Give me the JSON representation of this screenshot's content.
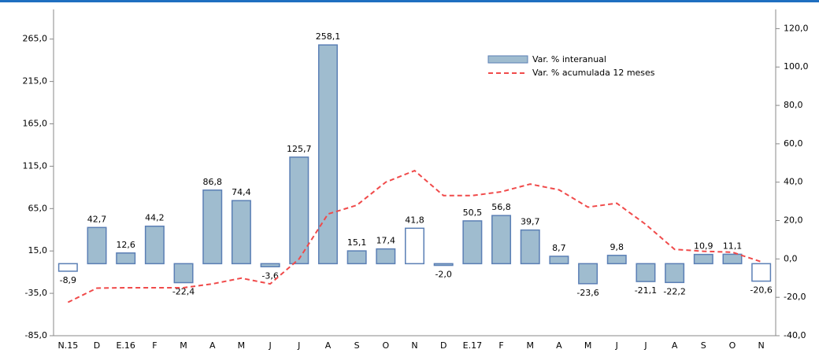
{
  "chart_data": {
    "type": "bar",
    "categories": [
      "N.15",
      "D",
      "E.16",
      "F",
      "M",
      "A",
      "M",
      "J",
      "J",
      "A",
      "S",
      "O",
      "N",
      "D",
      "E.17",
      "F",
      "M",
      "A",
      "M",
      "J",
      "J",
      "A",
      "S",
      "O",
      "N"
    ],
    "series": [
      {
        "name": "Var. % interanual",
        "color": "#9fbccf",
        "edge": "#5b7fb5",
        "colors": [
          "#ffffff",
          "#9fbccf",
          "#9fbccf",
          "#9fbccf",
          "#9fbccf",
          "#9fbccf",
          "#9fbccf",
          "#9fbccf",
          "#9fbccf",
          "#9fbccf",
          "#9fbccf",
          "#9fbccf",
          "#ffffff",
          "#9fbccf",
          "#9fbccf",
          "#9fbccf",
          "#9fbccf",
          "#9fbccf",
          "#9fbccf",
          "#9fbccf",
          "#9fbccf",
          "#9fbccf",
          "#9fbccf",
          "#9fbccf",
          "#ffffff"
        ],
        "values": [
          -8.9,
          42.7,
          12.6,
          44.2,
          -22.4,
          86.8,
          74.4,
          -3.6,
          125.7,
          258.1,
          15.1,
          17.4,
          41.8,
          -2.0,
          50.5,
          56.8,
          39.7,
          8.7,
          -23.6,
          9.8,
          -21.1,
          -22.2,
          10.9,
          11.1,
          -20.6
        ],
        "value_labels": [
          "-8,9",
          "42,7",
          "12,6",
          "44,2",
          "-22,4",
          "86,8",
          "74,4",
          "-3,6",
          "125,7",
          "258,1",
          "15,1",
          "17,4",
          "41,8",
          "-2,0",
          "50,5",
          "56,8",
          "39,7",
          "8,7",
          "-23,6",
          "9,8",
          "-21,1",
          "-22,2",
          "10,9",
          "11,1",
          "-20,6"
        ]
      },
      {
        "name": "Var. % acumulada 12 meses",
        "type": "line",
        "axis": "y2",
        "color": "#f04a4a",
        "line_style": "dashed",
        "values": [
          -22.6,
          -15.2,
          -15,
          -15,
          -15,
          -13,
          -10,
          -13,
          0,
          23.4,
          28,
          40,
          46,
          33,
          33,
          35,
          39,
          36,
          27,
          29,
          18,
          5,
          4,
          3.5,
          -1.5
        ]
      }
    ],
    "ylim": [
      -85,
      300
    ],
    "yticks": [
      {
        "value": -85,
        "label": "-85,0"
      },
      {
        "value": -35,
        "label": "-35,0"
      },
      {
        "value": 15,
        "label": "15,0"
      },
      {
        "value": 65,
        "label": "65,0"
      },
      {
        "value": 115,
        "label": "115,0"
      },
      {
        "value": 165,
        "label": "165,0"
      },
      {
        "value": 215,
        "label": "215,0"
      },
      {
        "value": 265,
        "label": "265,0"
      }
    ],
    "y2lim": [
      -40,
      130
    ],
    "y2ticks": [
      {
        "value": -40,
        "label": "-40,0"
      },
      {
        "value": -20,
        "label": "-20,0"
      },
      {
        "value": 0,
        "label": "0,0"
      },
      {
        "value": 20,
        "label": "20,0"
      },
      {
        "value": 40,
        "label": "40,0"
      },
      {
        "value": 60,
        "label": "60,0"
      },
      {
        "value": 80,
        "label": "80,0"
      },
      {
        "value": 100,
        "label": "100,0"
      },
      {
        "value": 120,
        "label": "120,0"
      }
    ],
    "legend": "upper right"
  }
}
